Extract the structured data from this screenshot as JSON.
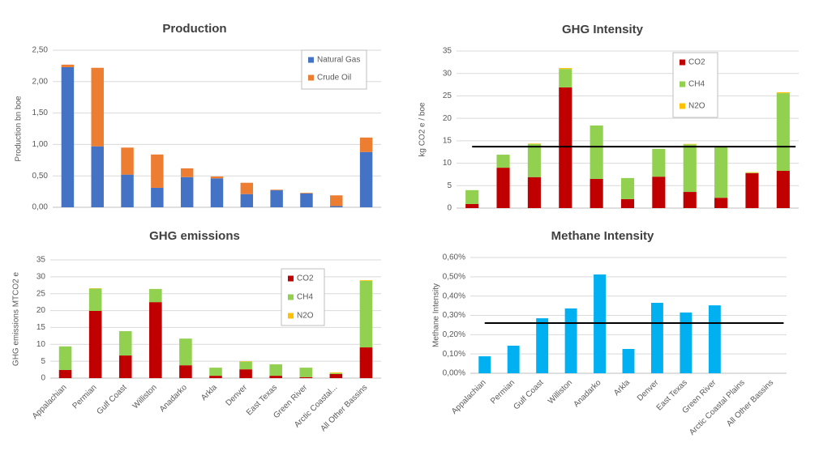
{
  "chart_data": [
    {
      "type": "bar",
      "stacked": true,
      "title": "Production",
      "y_label": "Production bn boe",
      "categories": [
        null,
        null,
        null,
        null,
        null,
        null,
        null,
        null,
        null,
        null,
        null
      ],
      "series": [
        {
          "name": "Natural Gas",
          "color": "#4472c4",
          "values": [
            2.23,
            0.97,
            0.52,
            0.31,
            0.48,
            0.46,
            0.21,
            0.27,
            0.22,
            0.02,
            0.88
          ]
        },
        {
          "name": "Crude Oil",
          "color": "#ed7d31",
          "values": [
            0.04,
            1.25,
            0.43,
            0.53,
            0.14,
            0.03,
            0.18,
            0.01,
            0.01,
            0.17,
            0.23
          ]
        }
      ],
      "ylim": [
        0,
        2.5
      ],
      "yticks": [
        {
          "value": 0,
          "label": "0,00"
        },
        {
          "value": 0.5,
          "label": "0,50"
        },
        {
          "value": 1,
          "label": "1,00"
        },
        {
          "value": 1.5,
          "label": "1,50"
        },
        {
          "value": 2,
          "label": "2,00"
        },
        {
          "value": 2.5,
          "label": "2,50"
        }
      ],
      "grid": true,
      "legend": "top-right"
    },
    {
      "type": "bar",
      "stacked": true,
      "title": "GHG Intensity",
      "y_label": "kg CO2 e / boe",
      "categories": [
        null,
        null,
        null,
        null,
        null,
        null,
        null,
        null,
        null,
        null,
        null
      ],
      "series": [
        {
          "name": "CO2",
          "color": "#c00000",
          "values": [
            0.9,
            9.0,
            6.9,
            26.9,
            6.5,
            2.0,
            7.0,
            3.6,
            2.3,
            7.8,
            8.3
          ]
        },
        {
          "name": "CH4",
          "color": "#92d050",
          "values": [
            3.1,
            2.9,
            7.4,
            4.1,
            11.9,
            4.7,
            6.2,
            10.6,
            11.4,
            0.1,
            17.3
          ]
        },
        {
          "name": "N2O",
          "color": "#ffc000",
          "values": [
            0,
            0,
            0.1,
            0.2,
            0,
            0,
            0,
            0.1,
            0,
            0.1,
            0.2
          ]
        }
      ],
      "ylim": [
        0,
        35
      ],
      "yticks": [
        0,
        5,
        10,
        15,
        20,
        25,
        30,
        35
      ],
      "reference_line": 13.7,
      "grid": true,
      "legend": "top-center"
    },
    {
      "type": "bar",
      "stacked": true,
      "title": "GHG emissions",
      "y_label": "GHG emissions MTCO2 e",
      "categories": [
        "Appalachian",
        "Permian",
        "Gulf Coast",
        "Williston",
        "Anadarko",
        "Arkla",
        "Denver",
        "East Texas",
        "Green River",
        "Arctic Coastal...",
        "All Other Bassins"
      ],
      "series": [
        {
          "name": "CO2",
          "color": "#c00000",
          "values": [
            2.4,
            19.9,
            6.7,
            22.5,
            3.8,
            0.7,
            2.6,
            0.7,
            0.3,
            1.2,
            9.1
          ]
        },
        {
          "name": "CH4",
          "color": "#92d050",
          "values": [
            7.0,
            6.6,
            7.2,
            3.9,
            7.9,
            2.4,
            2.3,
            3.4,
            2.8,
            0.3,
            19.7
          ]
        },
        {
          "name": "N2O",
          "color": "#ffc000",
          "values": [
            0,
            0.1,
            0,
            0,
            0,
            0,
            0.1,
            0,
            0,
            0.2,
            0.2
          ]
        }
      ],
      "ylim": [
        0,
        35
      ],
      "yticks": [
        0,
        5,
        10,
        15,
        20,
        25,
        30,
        35
      ],
      "grid": true,
      "legend": "top-right"
    },
    {
      "type": "bar",
      "title": "Methane Intensity",
      "y_label": "Methane Intensity",
      "categories": [
        "Appalachian",
        "Permian",
        "Gulf Coast",
        "Williston",
        "Anadarko",
        "Arkla",
        "Denver",
        "East Texas",
        "Green River",
        "Arctic Coastal Plains",
        "All Other Bassins"
      ],
      "series": [
        {
          "color": "#00b0f0",
          "values": [
            0.088,
            0.143,
            0.285,
            0.336,
            0.512,
            0.126,
            0.365,
            0.315,
            0.352,
            null,
            null
          ]
        }
      ],
      "ylim": [
        0,
        0.6
      ],
      "yticks": [
        {
          "value": 0,
          "label": "0,00%"
        },
        {
          "value": 0.1,
          "label": "0,10%"
        },
        {
          "value": 0.2,
          "label": "0,20%"
        },
        {
          "value": 0.3,
          "label": "0,30%"
        },
        {
          "value": 0.4,
          "label": "0,40%"
        },
        {
          "value": 0.5,
          "label": "0,50%"
        },
        {
          "value": 0.6,
          "label": "0,60%"
        }
      ],
      "reference_line": 0.26,
      "grid": true
    }
  ]
}
